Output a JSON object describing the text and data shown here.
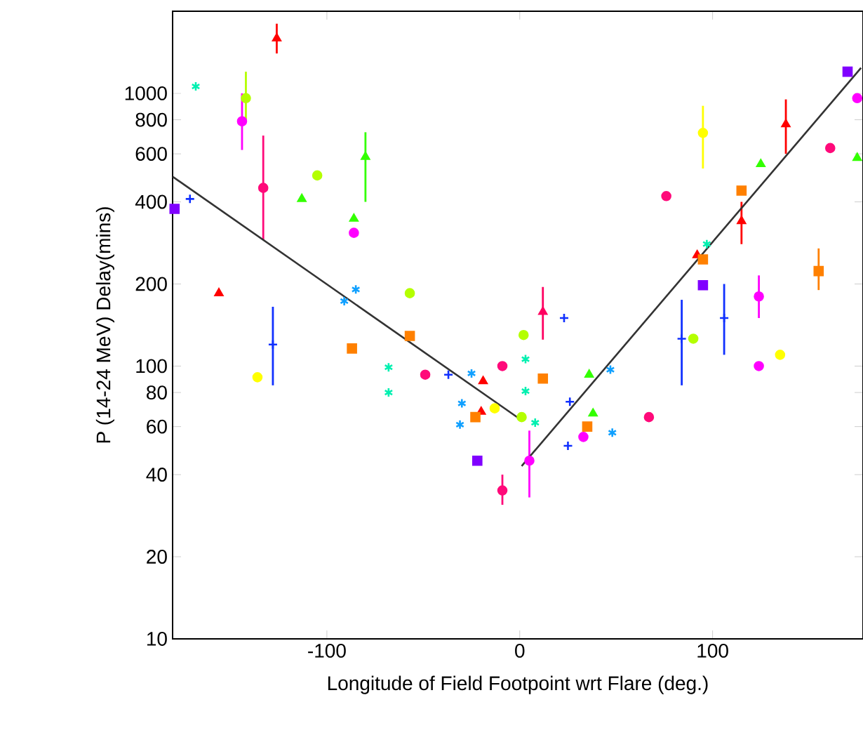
{
  "chart_data": {
    "type": "scatter",
    "xlabel": "Longitude of Field Footpoint wrt Flare (deg.)",
    "ylabel": "P (14-24 MeV) Delay(mins)",
    "log": "y",
    "xlim": [
      -180,
      178
    ],
    "ylim": [
      10,
      2000
    ],
    "xticks": [
      -100,
      0,
      100
    ],
    "yticks": [
      10,
      20,
      40,
      60,
      80,
      100,
      200,
      400,
      600,
      800,
      1000
    ],
    "series": [
      {
        "color": "#ff0000",
        "marker": "triangle",
        "x": [
          -126,
          -156,
          -19,
          -20,
          92,
          115,
          138
        ],
        "values": [
          1590,
          185,
          88,
          68,
          255,
          340,
          770
        ],
        "errors": [
          [
            1400,
            1800
          ],
          null,
          null,
          null,
          null,
          [
            280,
            400
          ],
          [
            600,
            950
          ]
        ]
      },
      {
        "color": "#ff0060",
        "marker": "triangle",
        "x": [
          12
        ],
        "values": [
          158
        ],
        "errors": [
          [
            125,
            195
          ]
        ]
      },
      {
        "color": "#ff00ff",
        "marker": "circle",
        "x": [
          -144,
          -86,
          5,
          124,
          124,
          33,
          175
        ],
        "values": [
          790,
          308,
          45,
          180,
          100,
          55,
          960
        ],
        "errors": [
          [
            620,
            1000
          ],
          null,
          [
            33,
            58
          ],
          [
            150,
            215
          ],
          null,
          null,
          null
        ]
      },
      {
        "color": "#ff0a7a",
        "marker": "circle",
        "x": [
          -133,
          -49,
          -9,
          -9,
          67,
          76,
          161
        ],
        "values": [
          450,
          93,
          100,
          35,
          65,
          420,
          630
        ],
        "errors": [
          [
            290,
            700
          ],
          null,
          null,
          [
            31,
            40
          ],
          null,
          null,
          null
        ]
      },
      {
        "color": "#ffff00",
        "marker": "circle",
        "x": [
          95,
          -136,
          -13,
          135
        ],
        "values": [
          716,
          91,
          70,
          110
        ],
        "errors": [
          [
            530,
            900
          ],
          null,
          null,
          null
        ]
      },
      {
        "color": "#b4ff00",
        "marker": "circle",
        "x": [
          -142,
          -105,
          -57,
          2,
          90,
          1
        ],
        "values": [
          960,
          500,
          185,
          130,
          126,
          65
        ],
        "errors": [
          [
            800,
            1200
          ],
          null,
          null,
          null,
          null,
          null
        ]
      },
      {
        "color": "#33ff00",
        "marker": "triangle",
        "x": [
          -80,
          -113,
          -86,
          125,
          175,
          36,
          38
        ],
        "values": [
          585,
          410,
          347,
          550,
          580,
          93,
          67
        ],
        "errors": [
          [
            400,
            720
          ],
          null,
          null,
          null,
          null,
          null,
          null
        ]
      },
      {
        "color": "#ff8000",
        "marker": "square",
        "x": [
          -87,
          -57,
          -23,
          12,
          35,
          95,
          115,
          155
        ],
        "values": [
          116,
          129,
          65,
          90,
          60,
          246,
          440,
          223
        ],
        "errors": [
          null,
          null,
          null,
          null,
          null,
          null,
          null,
          [
            190,
            270
          ]
        ]
      },
      {
        "color": "#8000ff",
        "marker": "square",
        "x": [
          -179,
          -22,
          95,
          170
        ],
        "values": [
          377,
          45,
          198,
          1200
        ]
      },
      {
        "color": "#1030ff",
        "marker": "cross",
        "x": [
          -171,
          -128,
          -37,
          23,
          26,
          25,
          84,
          106
        ],
        "values": [
          410,
          120,
          93,
          150,
          74,
          51,
          126,
          150
        ],
        "errors": [
          null,
          [
            85,
            165
          ],
          null,
          null,
          null,
          null,
          [
            85,
            175
          ],
          [
            110,
            200
          ]
        ]
      },
      {
        "color": "#10a0ff",
        "x": [
          -85,
          -91,
          -30,
          -31,
          -25,
          47,
          48
        ],
        "values": [
          191,
          173,
          73,
          61,
          94,
          97,
          57
        ]
      },
      {
        "color": "#00f0b0",
        "x": [
          -168,
          -68,
          -68,
          3,
          3,
          8,
          97
        ],
        "values": [
          1060,
          99,
          80,
          106,
          81,
          62,
          280
        ]
      },
      {
        "type": "line",
        "color": "#333333",
        "line_style": "solid",
        "x": [
          -180,
          0
        ],
        "values": [
          495,
          64
        ]
      },
      {
        "type": "line",
        "color": "#333333",
        "line_style": "solid",
        "x": [
          1,
          177
        ],
        "values": [
          43,
          1240
        ]
      }
    ]
  }
}
